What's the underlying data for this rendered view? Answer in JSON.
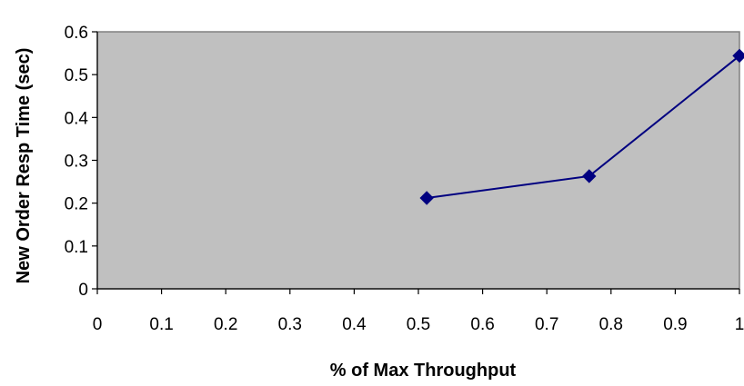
{
  "chart_data": {
    "type": "line",
    "title": "",
    "xlabel": "% of Max Throughput",
    "ylabel": "New Order Resp Time (sec)",
    "xlim": [
      0,
      1
    ],
    "ylim": [
      0,
      0.6
    ],
    "x_ticks": [
      "0",
      "0.1",
      "0.2",
      "0.3",
      "0.4",
      "0.5",
      "0.6",
      "0.7",
      "0.8",
      "0.9",
      "1"
    ],
    "y_ticks": [
      "0",
      "0.1",
      "0.2",
      "0.3",
      "0.4",
      "0.5",
      "0.6"
    ],
    "grid": false,
    "legend": "none",
    "plot_background": "#c0c0c0",
    "series": [
      {
        "color": "#000080",
        "marker": "diamond",
        "x": [
          0.513,
          0.766,
          1.0
        ],
        "y": [
          0.212,
          0.263,
          0.544
        ]
      }
    ]
  }
}
